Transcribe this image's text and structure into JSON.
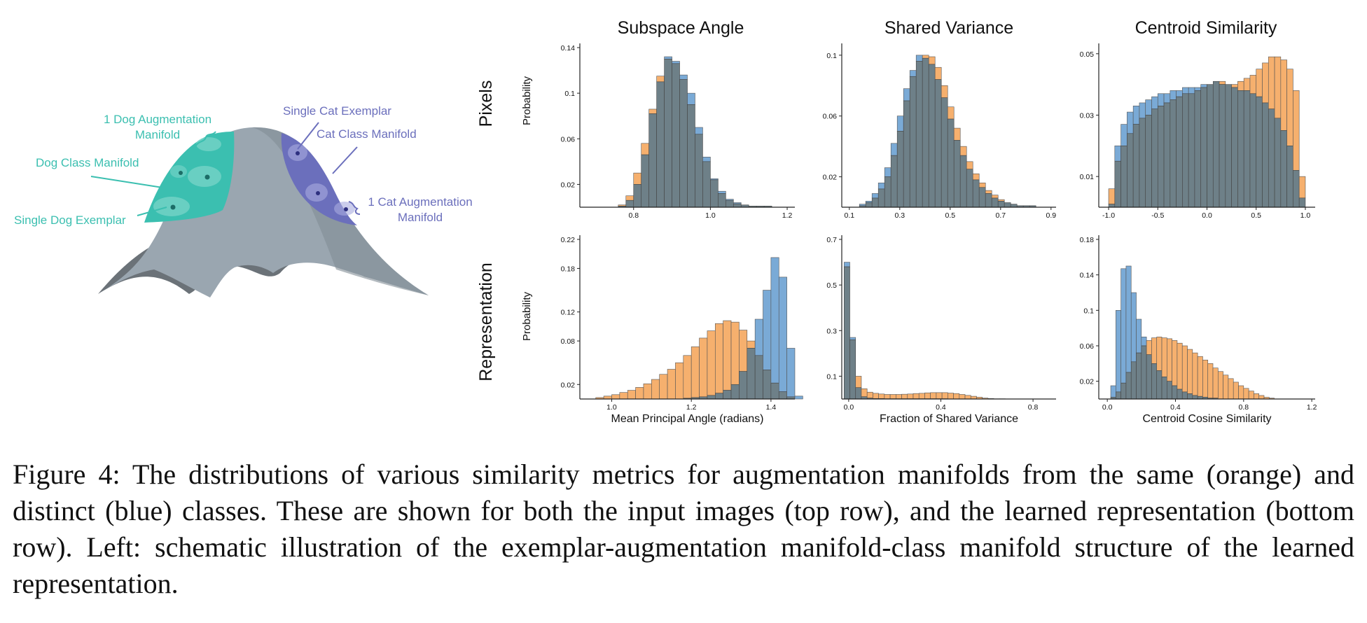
{
  "figure": {
    "schematic_labels": {
      "dog_aug": "1 Dog  Augmentation\nManifold",
      "dog_class": "Dog Class Manifold",
      "dog_exemplar": "Single Dog Exemplar",
      "cat_exemplar": "Single Cat Exemplar",
      "cat_class": "Cat Class Manifold",
      "cat_aug": "1 Cat Augmentation\nManifold"
    },
    "column_titles": [
      "Subspace Angle",
      "Shared Variance",
      "Centroid Similarity"
    ],
    "row_labels": [
      "Pixels",
      "Representation"
    ],
    "ylabel": "Probability",
    "colors": {
      "same": "#f6b06e",
      "distinct": "#7aaad6",
      "overlap": "#6e8088",
      "teal": "#3bbfb0",
      "purple": "#6b6fbc"
    },
    "caption": "Figure 4: The distributions of various similarity metrics for augmentation manifolds from the same (orange) and distinct (blue) classes. These are shown for both the input images (top row), and the learned representation (bottom row).  Left:  schematic illustration of the exemplar-augmentation manifold-class manifold structure of the learned representation."
  },
  "chart_data": [
    {
      "type": "bar",
      "row": "Pixels",
      "column": "Subspace Angle",
      "xlabel": "",
      "ylabel": "Probability",
      "xlim": [
        0.66,
        1.22
      ],
      "ylim": [
        0,
        0.14
      ],
      "xticks": [
        {
          "v": 0.8,
          "t": "0.8"
        },
        {
          "v": 1.0,
          "t": "1.0"
        },
        {
          "v": 1.2,
          "t": "1.2"
        }
      ],
      "yticks": [
        {
          "v": 0.02,
          "t": "0.02"
        },
        {
          "v": 0.06,
          "t": "0.06"
        },
        {
          "v": 0.1,
          "t": "0.1"
        },
        {
          "v": 0.14,
          "t": "0.14"
        }
      ],
      "bin_start": 0.76,
      "bin_width": 0.02,
      "series": [
        {
          "name": "same",
          "values": [
            0.002,
            0.01,
            0.03,
            0.056,
            0.086,
            0.115,
            0.13,
            0.126,
            0.112,
            0.09,
            0.064,
            0.04,
            0.024,
            0.012,
            0.006,
            0.003,
            0.002,
            0.001,
            0.001,
            0.001
          ]
        },
        {
          "name": "distinct",
          "values": [
            0.001,
            0.006,
            0.02,
            0.046,
            0.082,
            0.11,
            0.132,
            0.128,
            0.116,
            0.1,
            0.07,
            0.044,
            0.025,
            0.014,
            0.007,
            0.004,
            0.002,
            0.001,
            0.001,
            0.001
          ]
        }
      ]
    },
    {
      "type": "bar",
      "row": "Pixels",
      "column": "Shared Variance",
      "xlabel": "",
      "ylabel": "Probability",
      "xlim": [
        0.07,
        0.92
      ],
      "ylim": [
        0,
        0.105
      ],
      "xticks": [
        {
          "v": 0.1,
          "t": "0.1"
        },
        {
          "v": 0.3,
          "t": "0.3"
        },
        {
          "v": 0.5,
          "t": "0.5"
        },
        {
          "v": 0.7,
          "t": "0.7"
        },
        {
          "v": 0.9,
          "t": "0.9"
        }
      ],
      "yticks": [
        {
          "v": 0.02,
          "t": "0.02"
        },
        {
          "v": 0.06,
          "t": "0.06"
        },
        {
          "v": 0.1,
          "t": "0.1"
        }
      ],
      "bin_start": 0.14,
      "bin_width": 0.025,
      "series": [
        {
          "name": "same",
          "values": [
            0.001,
            0.003,
            0.006,
            0.012,
            0.02,
            0.034,
            0.05,
            0.07,
            0.086,
            0.096,
            0.1,
            0.099,
            0.092,
            0.08,
            0.066,
            0.052,
            0.04,
            0.03,
            0.022,
            0.016,
            0.011,
            0.008,
            0.005,
            0.003,
            0.002,
            0.001,
            0.001,
            0.001
          ]
        },
        {
          "name": "distinct",
          "values": [
            0.002,
            0.004,
            0.009,
            0.016,
            0.026,
            0.042,
            0.06,
            0.078,
            0.09,
            0.1,
            0.098,
            0.094,
            0.084,
            0.072,
            0.058,
            0.044,
            0.034,
            0.025,
            0.018,
            0.013,
            0.009,
            0.006,
            0.004,
            0.003,
            0.002,
            0.001,
            0.001,
            0.001
          ]
        }
      ]
    },
    {
      "type": "bar",
      "row": "Pixels",
      "column": "Centroid Similarity",
      "xlabel": "",
      "ylabel": "Probability",
      "xlim": [
        -1.1,
        1.1
      ],
      "ylim": [
        0,
        0.052
      ],
      "xticks": [
        {
          "v": -1.0,
          "t": "-1.0"
        },
        {
          "v": -0.5,
          "t": "-0.5"
        },
        {
          "v": 0.0,
          "t": "0.0"
        },
        {
          "v": 0.5,
          "t": "0.5"
        },
        {
          "v": 1.0,
          "t": "1.0"
        }
      ],
      "yticks": [
        {
          "v": 0.01,
          "t": "0.01"
        },
        {
          "v": 0.03,
          "t": "0.03"
        },
        {
          "v": 0.05,
          "t": "0.05"
        }
      ],
      "bin_start": -1.0,
      "bin_width": 0.0625,
      "series": [
        {
          "name": "same",
          "values": [
            0.006,
            0.015,
            0.02,
            0.024,
            0.027,
            0.029,
            0.03,
            0.032,
            0.033,
            0.034,
            0.035,
            0.036,
            0.037,
            0.037,
            0.038,
            0.039,
            0.04,
            0.041,
            0.041,
            0.04,
            0.04,
            0.041,
            0.042,
            0.043,
            0.045,
            0.047,
            0.049,
            0.049,
            0.048,
            0.045,
            0.038,
            0.01
          ]
        },
        {
          "name": "distinct",
          "values": [
            0.001,
            0.02,
            0.027,
            0.031,
            0.033,
            0.034,
            0.035,
            0.036,
            0.037,
            0.037,
            0.038,
            0.038,
            0.039,
            0.039,
            0.039,
            0.04,
            0.04,
            0.041,
            0.04,
            0.04,
            0.039,
            0.038,
            0.038,
            0.037,
            0.036,
            0.034,
            0.032,
            0.029,
            0.025,
            0.02,
            0.012,
            0.003
          ]
        }
      ]
    },
    {
      "type": "bar",
      "row": "Representation",
      "column": "Subspace Angle",
      "xlabel": "Mean Principal Angle (radians)",
      "ylabel": "Probability",
      "xlim": [
        0.92,
        1.46
      ],
      "ylim": [
        0,
        0.22
      ],
      "xticks": [
        {
          "v": 1.0,
          "t": "1.0"
        },
        {
          "v": 1.2,
          "t": "1.2"
        },
        {
          "v": 1.4,
          "t": "1.4"
        }
      ],
      "yticks": [
        {
          "v": 0.02,
          "t": "0.02"
        },
        {
          "v": 0.08,
          "t": "0.08"
        },
        {
          "v": 0.12,
          "t": "0.12"
        },
        {
          "v": 0.18,
          "t": "0.18"
        },
        {
          "v": 0.22,
          "t": "0.22"
        }
      ],
      "bin_start": 0.96,
      "bin_width": 0.02,
      "series": [
        {
          "name": "same",
          "values": [
            0.002,
            0.004,
            0.006,
            0.009,
            0.012,
            0.016,
            0.021,
            0.027,
            0.034,
            0.041,
            0.05,
            0.06,
            0.072,
            0.084,
            0.094,
            0.104,
            0.108,
            0.106,
            0.095,
            0.08,
            0.06,
            0.04,
            0.022,
            0.01,
            0.003
          ]
        },
        {
          "name": "distinct",
          "values": [
            0,
            0,
            0,
            0,
            0,
            0,
            0,
            0,
            0,
            0,
            0,
            0.001,
            0.002,
            0.003,
            0.005,
            0.008,
            0.012,
            0.02,
            0.038,
            0.07,
            0.11,
            0.15,
            0.195,
            0.168,
            0.07,
            0.004
          ]
        }
      ]
    },
    {
      "type": "bar",
      "row": "Representation",
      "column": "Shared Variance",
      "xlabel": "Fraction of Shared Variance",
      "ylabel": "Probability",
      "xlim": [
        -0.03,
        0.9
      ],
      "ylim": [
        0,
        0.7
      ],
      "xticks": [
        {
          "v": 0.0,
          "t": "0.0"
        },
        {
          "v": 0.4,
          "t": "0.4"
        },
        {
          "v": 0.8,
          "t": "0.8"
        }
      ],
      "yticks": [
        {
          "v": 0.1,
          "t": "0.1"
        },
        {
          "v": 0.3,
          "t": "0.3"
        },
        {
          "v": 0.5,
          "t": "0.5"
        },
        {
          "v": 0.7,
          "t": "0.7"
        }
      ],
      "bin_start": -0.02,
      "bin_width": 0.025,
      "series": [
        {
          "name": "same",
          "values": [
            0.58,
            0.26,
            0.1,
            0.045,
            0.03,
            0.025,
            0.022,
            0.02,
            0.02,
            0.02,
            0.021,
            0.022,
            0.024,
            0.025,
            0.027,
            0.028,
            0.028,
            0.028,
            0.026,
            0.024,
            0.02,
            0.016,
            0.012,
            0.008,
            0.004,
            0.002,
            0.001,
            0.001
          ]
        },
        {
          "name": "distinct",
          "values": [
            0.6,
            0.27,
            0.05,
            0.01,
            0.004,
            0.002,
            0.002,
            0.001,
            0.001,
            0.001,
            0.001,
            0.001,
            0.001,
            0.001,
            0.001,
            0.001,
            0.001,
            0.001,
            0,
            0,
            0,
            0,
            0,
            0,
            0,
            0,
            0,
            0
          ]
        }
      ]
    },
    {
      "type": "bar",
      "row": "Representation",
      "column": "Centroid Similarity",
      "xlabel": "Centroid Cosine Similarity",
      "ylabel": "Probability",
      "xlim": [
        -0.05,
        1.22
      ],
      "ylim": [
        0,
        0.18
      ],
      "xticks": [
        {
          "v": 0.0,
          "t": "0.0"
        },
        {
          "v": 0.4,
          "t": "0.4"
        },
        {
          "v": 0.8,
          "t": "0.8"
        },
        {
          "v": 1.2,
          "t": "1.2"
        }
      ],
      "yticks": [
        {
          "v": 0.02,
          "t": "0.02"
        },
        {
          "v": 0.06,
          "t": "0.06"
        },
        {
          "v": 0.1,
          "t": "0.1"
        },
        {
          "v": 0.14,
          "t": "0.14"
        },
        {
          "v": 0.18,
          "t": "0.18"
        }
      ],
      "bin_start": 0.02,
      "bin_width": 0.03,
      "series": [
        {
          "name": "same",
          "values": [
            0.002,
            0.008,
            0.018,
            0.03,
            0.042,
            0.052,
            0.06,
            0.066,
            0.069,
            0.07,
            0.069,
            0.068,
            0.066,
            0.063,
            0.06,
            0.056,
            0.052,
            0.048,
            0.044,
            0.04,
            0.035,
            0.031,
            0.027,
            0.023,
            0.019,
            0.015,
            0.012,
            0.009,
            0.006,
            0.004,
            0.002,
            0.001
          ]
        },
        {
          "name": "distinct",
          "values": [
            0.015,
            0.1,
            0.147,
            0.15,
            0.12,
            0.09,
            0.07,
            0.05,
            0.04,
            0.032,
            0.025,
            0.02,
            0.015,
            0.011,
            0.008,
            0.006,
            0.004,
            0.003,
            0.002,
            0.001,
            0.001,
            0,
            0,
            0,
            0,
            0,
            0,
            0,
            0,
            0,
            0,
            0
          ]
        }
      ]
    }
  ]
}
